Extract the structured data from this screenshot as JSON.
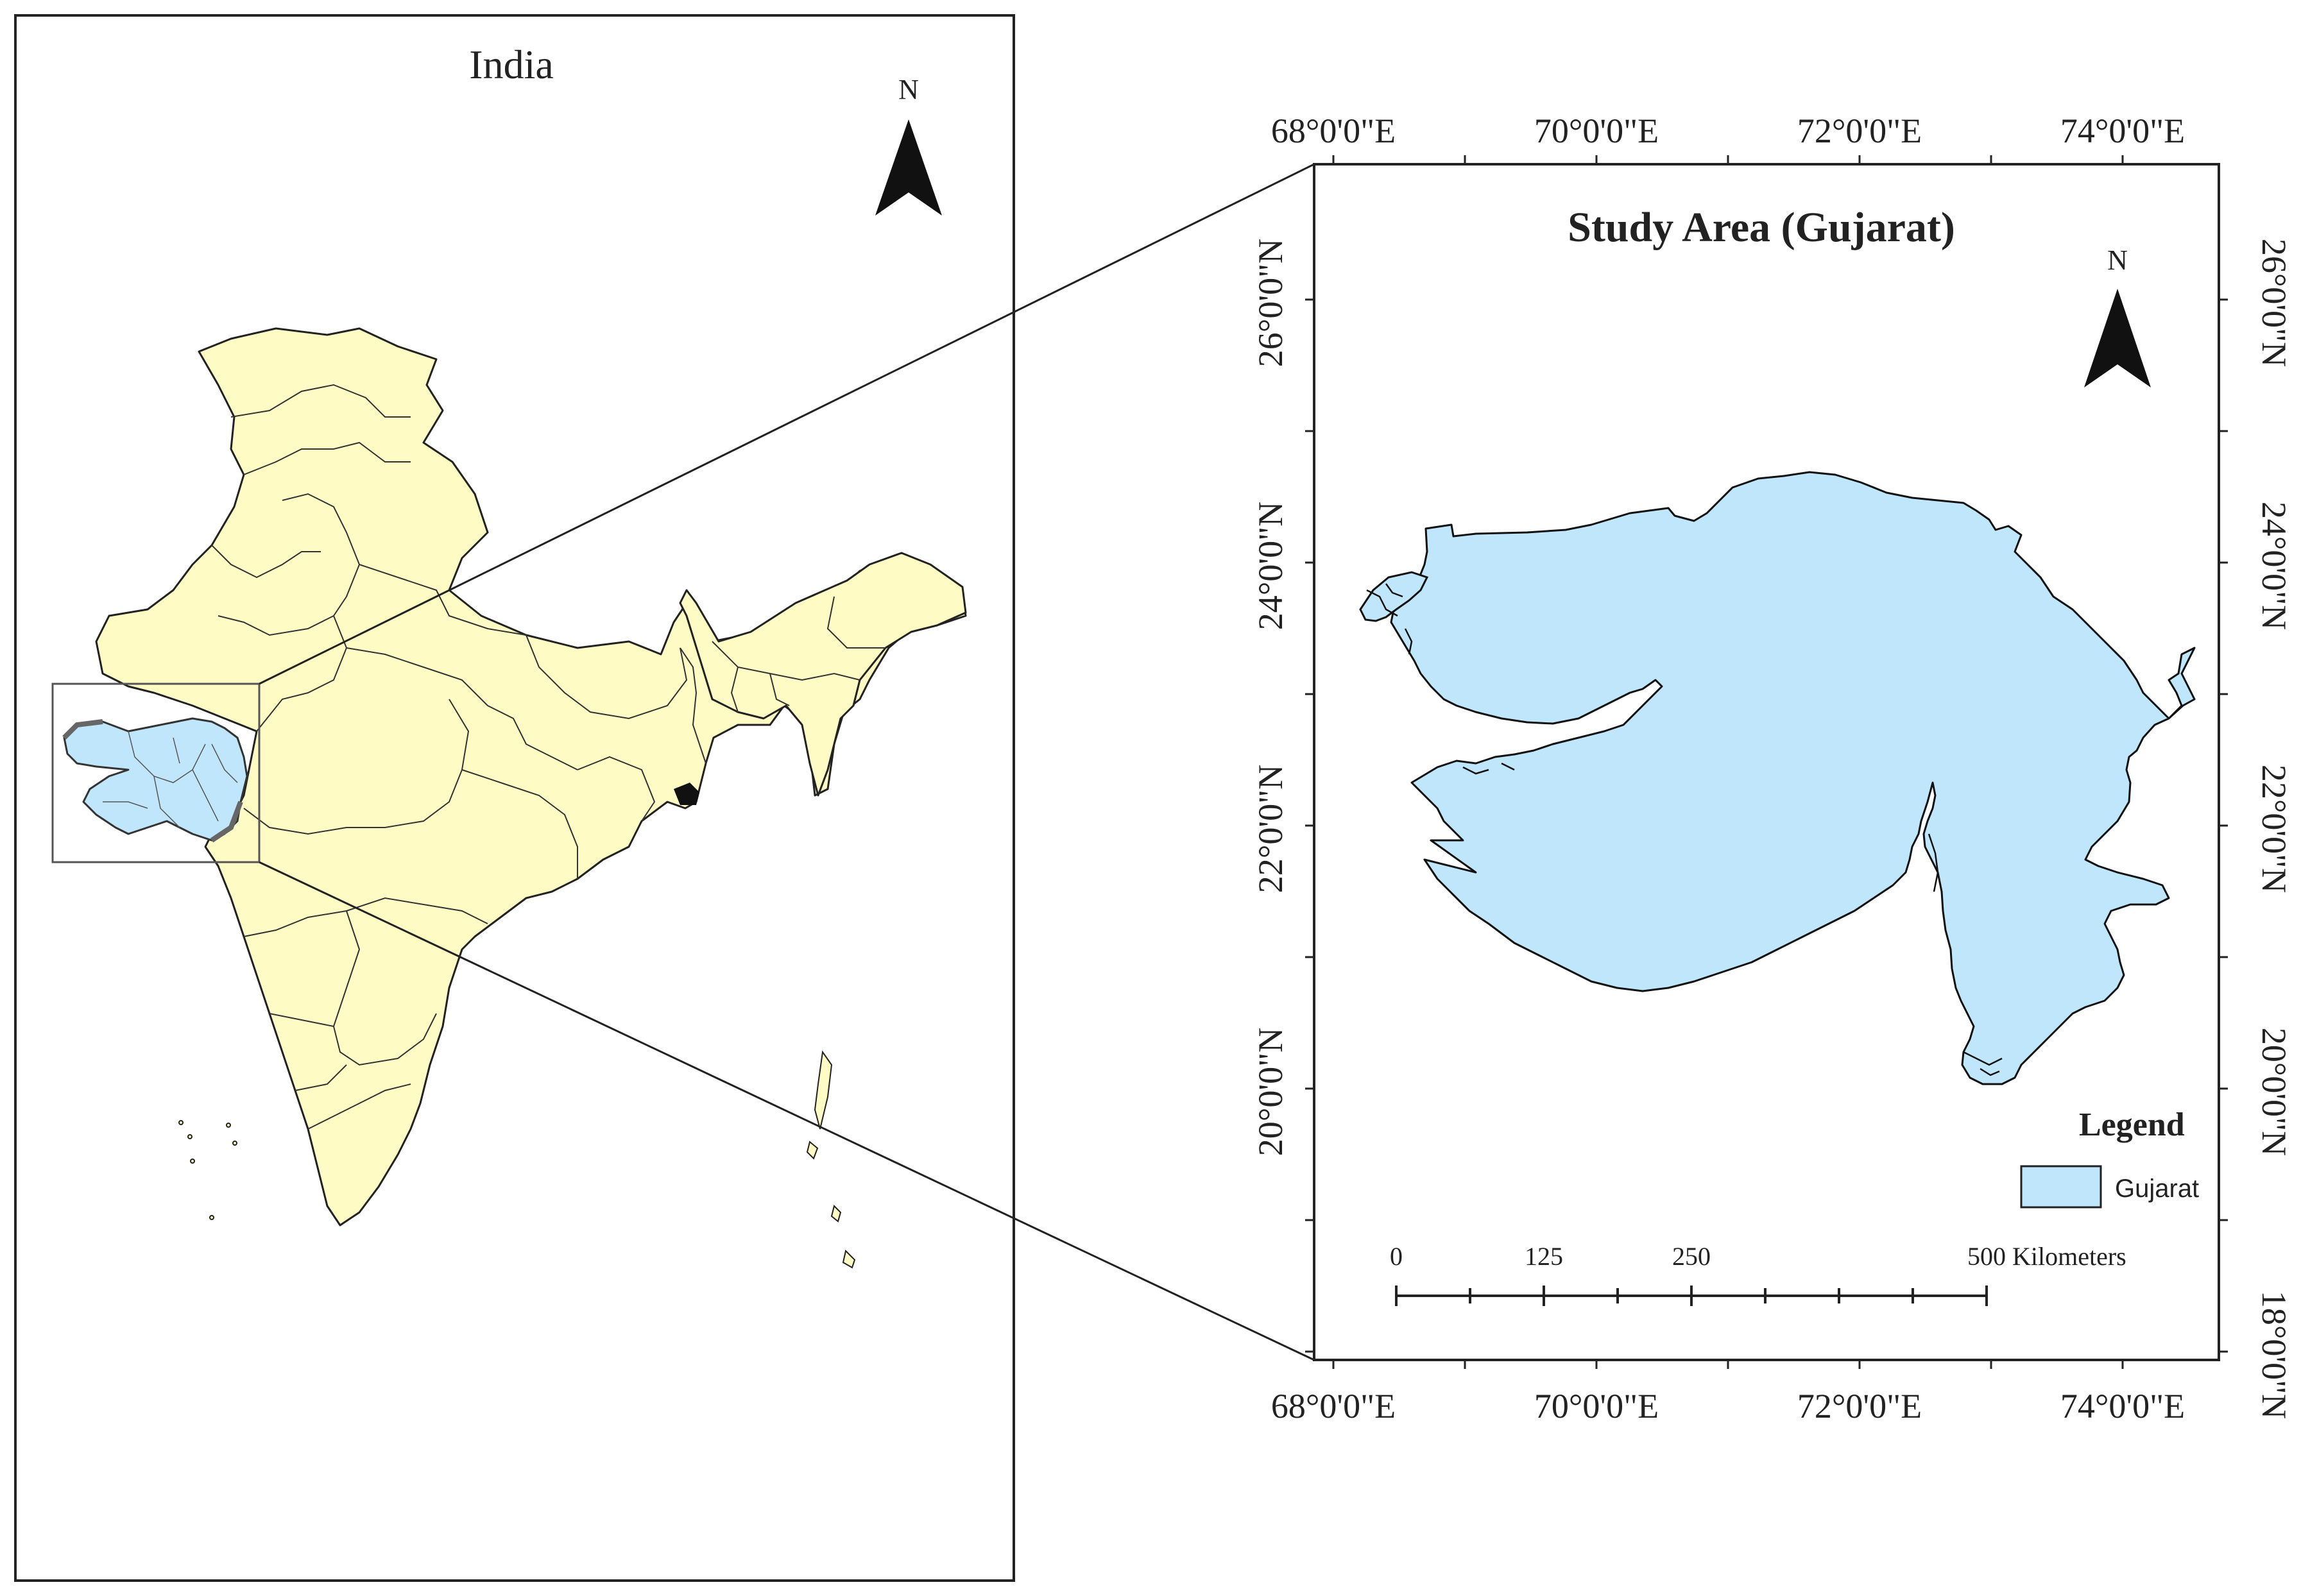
{
  "left_map": {
    "title": "India",
    "north_label": "N"
  },
  "right_map": {
    "title": "Study Area (Gujarat)",
    "north_label": "N",
    "top_longitudes": [
      "68°0'0\"E",
      "70°0'0\"E",
      "72°0'0\"E",
      "74°0'0\"E"
    ],
    "bottom_longitudes": [
      "68°0'0\"E",
      "70°0'0\"E",
      "72°0'0\"E",
      "74°0'0\"E"
    ],
    "left_latitudes": [
      "26°0'0\"N",
      "24°0'0\"N",
      "22°0'0\"N",
      "20°0'0\"N"
    ],
    "right_latitudes": [
      "26°0'0\"N",
      "24°0'0\"N",
      "22°0'0\"N",
      "20°0'0\"N",
      "18°0'0\"N"
    ],
    "legend": {
      "title": "Legend",
      "items": [
        {
          "label": "Gujarat"
        }
      ]
    },
    "scale_bar": {
      "labels": [
        "0",
        "125",
        "250",
        "500 Kilometers"
      ]
    }
  },
  "colors": {
    "india_fill": "#fefcc4",
    "gujarat_fill": "#bfe6fb",
    "border": "#222222",
    "background": "#ffffff"
  }
}
